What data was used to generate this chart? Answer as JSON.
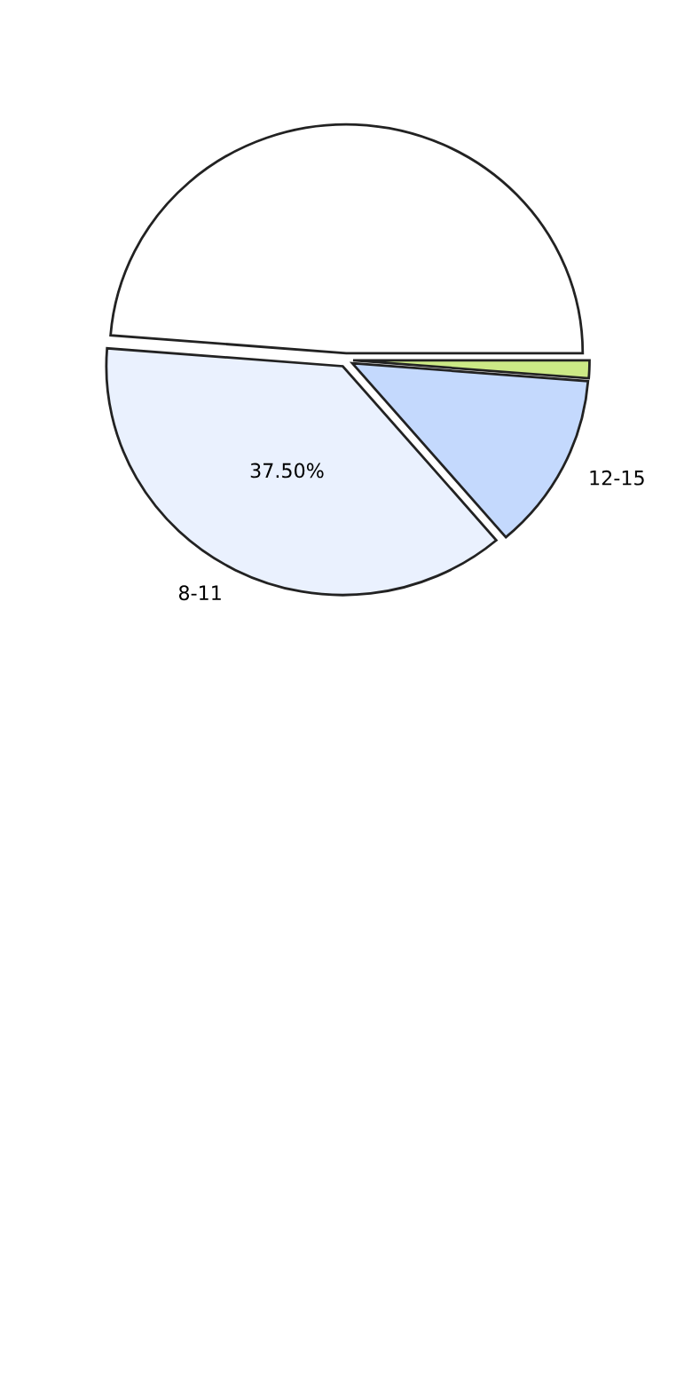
{
  "chart_data": {
    "type": "pie",
    "categories": [
      null,
      "8-11",
      "12-15",
      null
    ],
    "values": [
      48.75,
      37.5,
      12.5,
      1.25
    ],
    "colors": [
      "#ffffff",
      "#eaf1fe",
      "#c4d9fd",
      "#cce986"
    ],
    "value_labels": [
      null,
      "37.50%",
      null,
      null
    ]
  }
}
